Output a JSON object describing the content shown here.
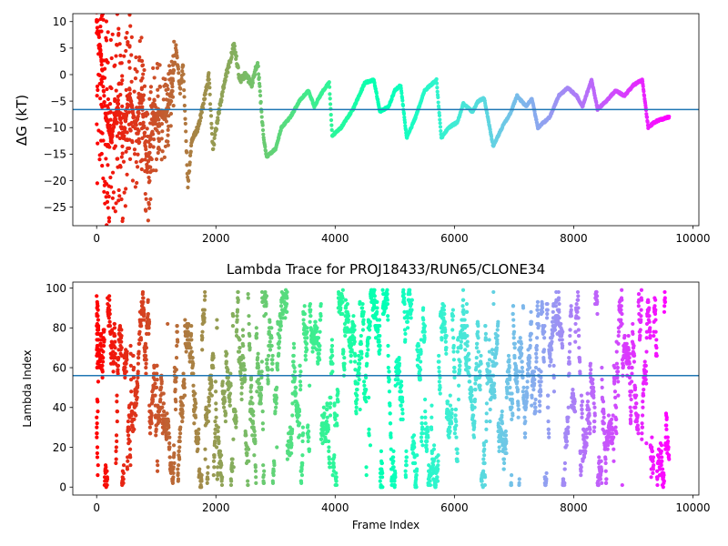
{
  "chart_data": [
    {
      "type": "scatter",
      "title": "",
      "xlabel": "",
      "ylabel": "ΔG (kT)",
      "xlim": [
        -400,
        10100
      ],
      "ylim": [
        -28.5,
        11.5
      ],
      "xticks": [
        0,
        2000,
        4000,
        6000,
        8000,
        10000
      ],
      "yticks": [
        10,
        5,
        0,
        -5,
        -10,
        -15,
        -20,
        -25
      ],
      "hline": -6.6,
      "colormap": "rainbow (red at start, violet at end)",
      "hline_color": "#1f77b4",
      "trace_keypoints": [
        {
          "x": 0,
          "y": 10
        },
        {
          "x": 80,
          "y": 3
        },
        {
          "x": 150,
          "y": -8
        },
        {
          "x": 250,
          "y": -12
        },
        {
          "x": 350,
          "y": -6
        },
        {
          "x": 450,
          "y": -12
        },
        {
          "x": 550,
          "y": -3
        },
        {
          "x": 650,
          "y": -10
        },
        {
          "x": 750,
          "y": -4
        },
        {
          "x": 850,
          "y": -18
        },
        {
          "x": 950,
          "y": -9
        },
        {
          "x": 1050,
          "y": -7
        },
        {
          "x": 1150,
          "y": -8
        },
        {
          "x": 1250,
          "y": -4
        },
        {
          "x": 1330,
          "y": 5
        },
        {
          "x": 1400,
          "y": -3
        },
        {
          "x": 1450,
          "y": 2
        },
        {
          "x": 1530,
          "y": -21
        },
        {
          "x": 1600,
          "y": -12
        },
        {
          "x": 1700,
          "y": -10
        },
        {
          "x": 1800,
          "y": -5
        },
        {
          "x": 1880,
          "y": 0
        },
        {
          "x": 1950,
          "y": -14
        },
        {
          "x": 2050,
          "y": -7
        },
        {
          "x": 2150,
          "y": -1
        },
        {
          "x": 2250,
          "y": 3
        },
        {
          "x": 2300,
          "y": 6
        },
        {
          "x": 2400,
          "y": -1
        },
        {
          "x": 2500,
          "y": 0
        },
        {
          "x": 2600,
          "y": -2
        },
        {
          "x": 2700,
          "y": 2.5
        },
        {
          "x": 2800,
          "y": -12
        },
        {
          "x": 2850,
          "y": -15.5
        },
        {
          "x": 3000,
          "y": -14
        },
        {
          "x": 3100,
          "y": -10
        },
        {
          "x": 3250,
          "y": -8
        },
        {
          "x": 3400,
          "y": -5
        },
        {
          "x": 3550,
          "y": -3
        },
        {
          "x": 3650,
          "y": -6
        },
        {
          "x": 3800,
          "y": -3
        },
        {
          "x": 3900,
          "y": -1.5
        },
        {
          "x": 3950,
          "y": -11.5
        },
        {
          "x": 4100,
          "y": -10
        },
        {
          "x": 4300,
          "y": -6.5
        },
        {
          "x": 4400,
          "y": -4
        },
        {
          "x": 4500,
          "y": -1.5
        },
        {
          "x": 4650,
          "y": -1
        },
        {
          "x": 4750,
          "y": -7
        },
        {
          "x": 4900,
          "y": -6
        },
        {
          "x": 5000,
          "y": -3
        },
        {
          "x": 5100,
          "y": -2
        },
        {
          "x": 5200,
          "y": -12
        },
        {
          "x": 5350,
          "y": -8
        },
        {
          "x": 5500,
          "y": -3
        },
        {
          "x": 5600,
          "y": -2
        },
        {
          "x": 5700,
          "y": -1
        },
        {
          "x": 5780,
          "y": -12
        },
        {
          "x": 5900,
          "y": -10
        },
        {
          "x": 6050,
          "y": -9
        },
        {
          "x": 6150,
          "y": -5.5
        },
        {
          "x": 6300,
          "y": -7
        },
        {
          "x": 6400,
          "y": -5
        },
        {
          "x": 6500,
          "y": -4.5
        },
        {
          "x": 6650,
          "y": -13.5
        },
        {
          "x": 6800,
          "y": -10
        },
        {
          "x": 6950,
          "y": -7
        },
        {
          "x": 7050,
          "y": -4
        },
        {
          "x": 7200,
          "y": -6
        },
        {
          "x": 7300,
          "y": -4.5
        },
        {
          "x": 7400,
          "y": -10
        },
        {
          "x": 7600,
          "y": -8
        },
        {
          "x": 7750,
          "y": -4
        },
        {
          "x": 7900,
          "y": -2.5
        },
        {
          "x": 8050,
          "y": -4
        },
        {
          "x": 8150,
          "y": -6
        },
        {
          "x": 8300,
          "y": -1
        },
        {
          "x": 8400,
          "y": -6.5
        },
        {
          "x": 8550,
          "y": -5
        },
        {
          "x": 8700,
          "y": -3
        },
        {
          "x": 8850,
          "y": -4
        },
        {
          "x": 9000,
          "y": -2
        },
        {
          "x": 9150,
          "y": -1
        },
        {
          "x": 9250,
          "y": -10
        },
        {
          "x": 9350,
          "y": -9
        },
        {
          "x": 9450,
          "y": -8.5
        },
        {
          "x": 9600,
          "y": -8
        }
      ]
    },
    {
      "type": "scatter",
      "title": "Lambda Trace for PROJ18433/RUN65/CLONE34",
      "xlabel": "Frame Index",
      "ylabel": "Lambda Index",
      "xlim": [
        -400,
        10100
      ],
      "ylim": [
        -4,
        103
      ],
      "xticks": [
        0,
        2000,
        4000,
        6000,
        8000,
        10000
      ],
      "yticks": [
        0,
        20,
        40,
        60,
        80,
        100
      ],
      "hline": 56,
      "colormap": "rainbow (red at start, violet at end)",
      "hline_color": "#1f77b4",
      "value_range": [
        0,
        99
      ],
      "x_range": [
        0,
        9600
      ]
    }
  ]
}
